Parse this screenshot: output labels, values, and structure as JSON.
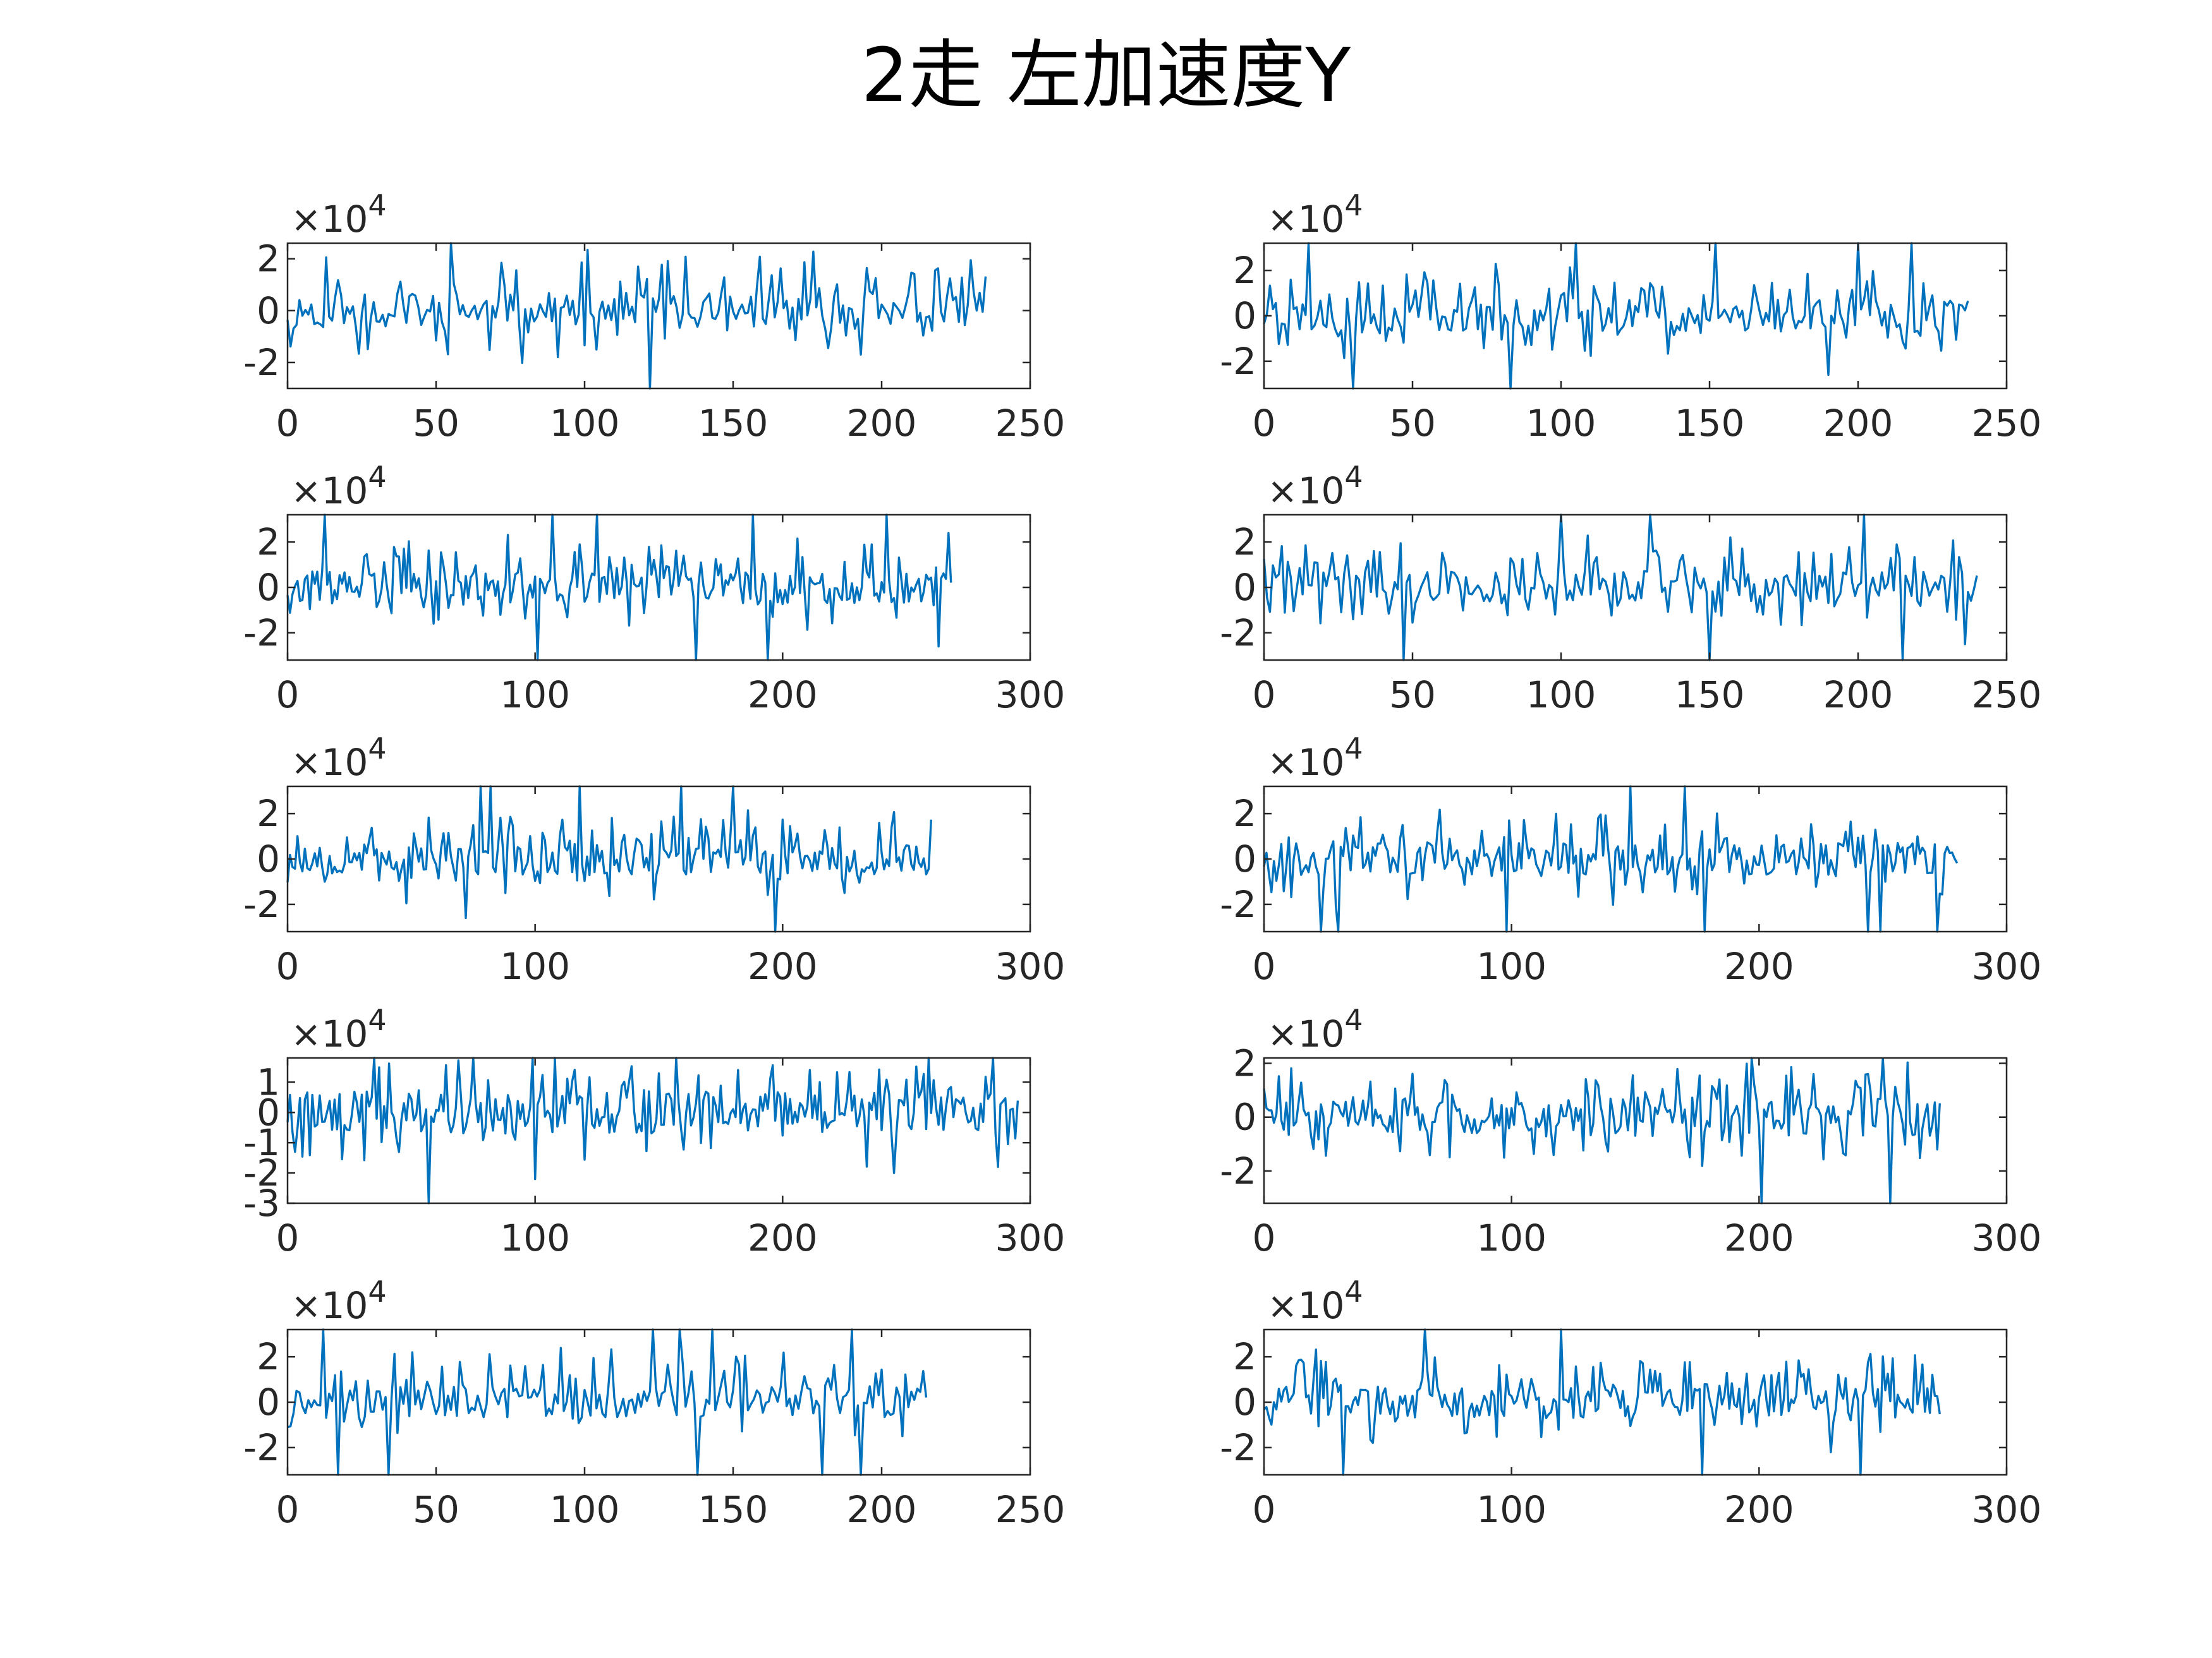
{
  "figure_title": "2走  左加速度Y",
  "colors": {
    "line": "#0072BD",
    "axes": "#262626",
    "background": "#ffffff"
  },
  "chart_data": [
    {
      "type": "line",
      "exponent_label": "×10^4",
      "xlim": [
        0,
        250
      ],
      "xticks": [
        0,
        50,
        100,
        150,
        200,
        250
      ],
      "ylim": [
        -3.0,
        2.6
      ],
      "yticks": [
        -2,
        0,
        2
      ],
      "ytick_labels": [
        "-2",
        "0",
        "2"
      ],
      "grid": false,
      "length": 235,
      "seed": 11,
      "spikes": [
        [
          55,
          2.6
        ],
        [
          122,
          -3.0
        ],
        [
          104,
          -1.5
        ]
      ]
    },
    {
      "type": "line",
      "exponent_label": "×10^4",
      "xlim": [
        0,
        250
      ],
      "xticks": [
        0,
        50,
        100,
        150,
        200,
        250
      ],
      "ylim": [
        -3.2,
        3.2
      ],
      "yticks": [
        -2,
        0,
        2
      ],
      "ytick_labels": [
        "-2",
        "0",
        "2"
      ],
      "grid": false,
      "length": 237,
      "seed": 23,
      "spikes": [
        [
          15,
          3.2
        ],
        [
          30,
          -3.2
        ],
        [
          83,
          -3.2
        ],
        [
          105,
          3.2
        ],
        [
          152,
          3.2
        ],
        [
          200,
          3.2
        ],
        [
          218,
          3.2
        ],
        [
          190,
          -2.6
        ]
      ]
    },
    {
      "type": "line",
      "exponent_label": "×10^4",
      "xlim": [
        0,
        300
      ],
      "xticks": [
        0,
        100,
        200,
        300
      ],
      "ylim": [
        -3.2,
        3.2
      ],
      "yticks": [
        -2,
        0,
        2
      ],
      "ytick_labels": [
        "-2",
        "0",
        "2"
      ],
      "grid": false,
      "length": 268,
      "seed": 37,
      "spikes": [
        [
          15,
          3.2
        ],
        [
          101,
          -3.2
        ],
        [
          107,
          3.2
        ],
        [
          125,
          3.2
        ],
        [
          165,
          -3.2
        ],
        [
          188,
          3.2
        ],
        [
          194,
          -3.2
        ],
        [
          242,
          3.2
        ],
        [
          263,
          -2.6
        ],
        [
          267,
          2.4
        ]
      ]
    },
    {
      "type": "line",
      "exponent_label": "×10^4",
      "xlim": [
        0,
        250
      ],
      "xticks": [
        0,
        50,
        100,
        150,
        200,
        250
      ],
      "ylim": [
        -3.2,
        3.2
      ],
      "yticks": [
        -2,
        0,
        2
      ],
      "ytick_labels": [
        "-2",
        "0",
        "2"
      ],
      "grid": false,
      "length": 240,
      "seed": 41,
      "spikes": [
        [
          47,
          -3.2
        ],
        [
          100,
          3.2
        ],
        [
          130,
          3.2
        ],
        [
          150,
          -3.2
        ],
        [
          202,
          3.2
        ],
        [
          215,
          -3.2
        ],
        [
          236,
          -2.5
        ]
      ]
    },
    {
      "type": "line",
      "exponent_label": "×10^4",
      "xlim": [
        0,
        300
      ],
      "xticks": [
        0,
        100,
        200,
        300
      ],
      "ylim": [
        -3.2,
        3.2
      ],
      "yticks": [
        -2,
        0,
        2
      ],
      "ytick_labels": [
        "-2",
        "0",
        "2"
      ],
      "grid": false,
      "length": 260,
      "seed": 53,
      "spikes": [
        [
          78,
          3.2
        ],
        [
          82,
          3.2
        ],
        [
          118,
          3.2
        ],
        [
          159,
          3.2
        ],
        [
          180,
          3.2
        ],
        [
          197,
          -3.2
        ],
        [
          72,
          -2.6
        ]
      ]
    },
    {
      "type": "line",
      "exponent_label": "×10^4",
      "xlim": [
        0,
        300
      ],
      "xticks": [
        0,
        100,
        200,
        300
      ],
      "ylim": [
        -3.2,
        3.2
      ],
      "yticks": [
        -2,
        0,
        2
      ],
      "ytick_labels": [
        "-2",
        "0",
        "2"
      ],
      "grid": false,
      "length": 280,
      "seed": 67,
      "spikes": [
        [
          23,
          -3.2
        ],
        [
          30,
          -3.2
        ],
        [
          98,
          -3.2
        ],
        [
          148,
          3.2
        ],
        [
          170,
          3.2
        ],
        [
          178,
          -3.2
        ],
        [
          244,
          -3.2
        ],
        [
          249,
          -3.2
        ],
        [
          272,
          -3.2
        ]
      ]
    },
    {
      "type": "line",
      "exponent_label": "×10^4",
      "xlim": [
        0,
        300
      ],
      "xticks": [
        0,
        100,
        200,
        300
      ],
      "ylim": [
        -3.0,
        1.8
      ],
      "yticks": [
        -3,
        -2,
        -1,
        0,
        1
      ],
      "ytick_labels": [
        "-3",
        "-2",
        "-1",
        "0",
        "1"
      ],
      "grid": false,
      "length": 295,
      "seed": 79,
      "spikes": [
        [
          35,
          1.8
        ],
        [
          57,
          -3.0
        ],
        [
          157,
          1.8
        ],
        [
          100,
          -2.2
        ],
        [
          245,
          -2.0
        ]
      ]
    },
    {
      "type": "line",
      "exponent_label": "×10^4",
      "xlim": [
        0,
        300
      ],
      "xticks": [
        0,
        100,
        200,
        300
      ],
      "ylim": [
        -3.2,
        2.2
      ],
      "yticks": [
        -2,
        0,
        2
      ],
      "ytick_labels": [
        "-2",
        "0",
        "2"
      ],
      "grid": false,
      "length": 273,
      "seed": 83,
      "spikes": [
        [
          197,
          2.2
        ],
        [
          201,
          -3.2
        ],
        [
          253,
          -3.2
        ],
        [
          272,
          -1.2
        ]
      ]
    },
    {
      "type": "line",
      "exponent_label": "×10^4",
      "xlim": [
        0,
        250
      ],
      "xticks": [
        0,
        50,
        100,
        150,
        200,
        250
      ],
      "ylim": [
        -3.2,
        3.2
      ],
      "yticks": [
        -2,
        0,
        2
      ],
      "ytick_labels": [
        "-2",
        "0",
        "2"
      ],
      "grid": false,
      "length": 215,
      "seed": 97,
      "spikes": [
        [
          12,
          3.2
        ],
        [
          17,
          -3.2
        ],
        [
          34,
          -3.2
        ],
        [
          123,
          3.2
        ],
        [
          132,
          3.2
        ],
        [
          138,
          -3.2
        ],
        [
          143,
          3.2
        ],
        [
          180,
          -3.2
        ],
        [
          190,
          3.2
        ],
        [
          193,
          -3.2
        ]
      ]
    },
    {
      "type": "line",
      "exponent_label": "×10^4",
      "xlim": [
        0,
        300
      ],
      "xticks": [
        0,
        100,
        200,
        300
      ],
      "ylim": [
        -3.2,
        3.2
      ],
      "yticks": [
        -2,
        0,
        2
      ],
      "ytick_labels": [
        "-2",
        "0",
        "2"
      ],
      "grid": false,
      "length": 273,
      "seed": 103,
      "spikes": [
        [
          32,
          -3.2
        ],
        [
          65,
          3.2
        ],
        [
          120,
          3.2
        ],
        [
          177,
          -3.2
        ],
        [
          241,
          -3.2
        ],
        [
          229,
          -2.2
        ]
      ]
    }
  ]
}
